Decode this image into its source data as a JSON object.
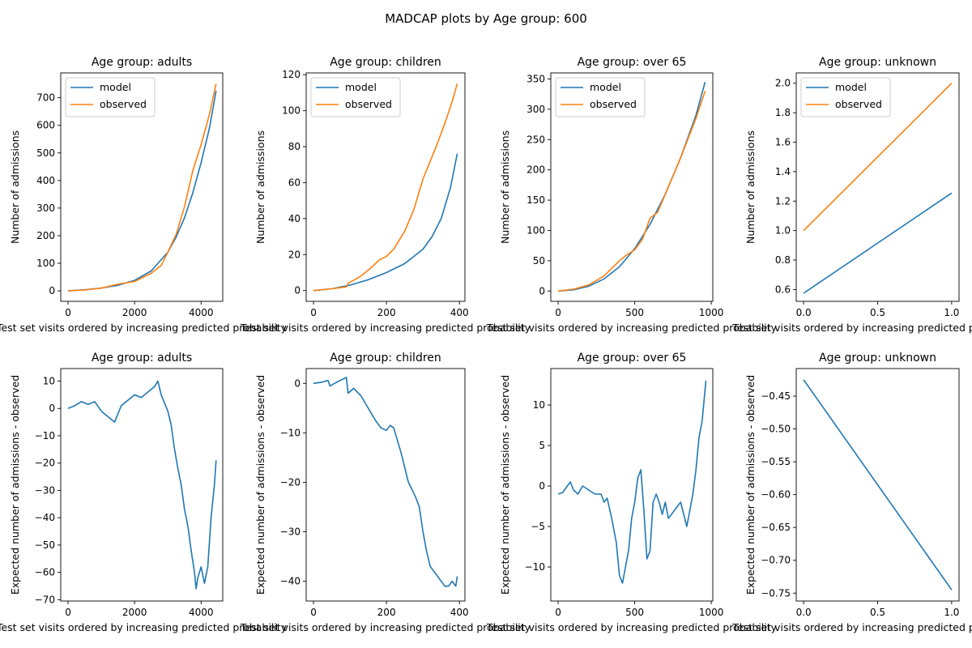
{
  "figure": {
    "suptitle": "MADCAP plots by Age group: 600"
  },
  "colors": {
    "model": "#1f77b4",
    "observed": "#ff7f0e",
    "diff": "#1f77b4"
  },
  "chart_data": [
    {
      "type": "line",
      "title": "Age group: adults",
      "xlabel": "Test set visits ordered by increasing predicted probability",
      "ylabel": "Number of admissions",
      "xlim": [
        -220,
        4650
      ],
      "ylim": [
        -38,
        790
      ],
      "xticks": [
        0,
        2000,
        4000
      ],
      "yticks": [
        0,
        100,
        200,
        300,
        400,
        500,
        600,
        700
      ],
      "legend": "upper-left",
      "series": [
        {
          "name": "model",
          "color": "model",
          "x": [
            0,
            500,
            1000,
            1500,
            2000,
            2500,
            3000,
            3250,
            3500,
            3750,
            4000,
            4250,
            4450
          ],
          "y": [
            0,
            4,
            10,
            20,
            38,
            72,
            140,
            195,
            265,
            355,
            465,
            590,
            725
          ]
        },
        {
          "name": "observed",
          "color": "observed",
          "x": [
            0,
            500,
            1000,
            1500,
            2000,
            2500,
            2800,
            3000,
            3250,
            3500,
            3750,
            4000,
            4250,
            4450
          ],
          "y": [
            0,
            3,
            10,
            24,
            34,
            64,
            92,
            140,
            205,
            305,
            435,
            530,
            640,
            750
          ]
        }
      ]
    },
    {
      "type": "line",
      "title": "Age group: children",
      "xlabel": "Test set visits ordered by increasing predicted probability",
      "ylabel": "Number of admissions",
      "xlim": [
        -20,
        415
      ],
      "ylim": [
        -6,
        121
      ],
      "xticks": [
        0,
        200,
        400
      ],
      "yticks": [
        0,
        20,
        40,
        60,
        80,
        100,
        120
      ],
      "legend": "upper-left",
      "series": [
        {
          "name": "model",
          "color": "model",
          "x": [
            0,
            50,
            100,
            150,
            200,
            250,
            300,
            325,
            350,
            375,
            394
          ],
          "y": [
            0,
            1,
            3,
            6,
            10,
            15,
            23,
            30,
            40,
            57,
            76
          ]
        },
        {
          "name": "observed",
          "color": "observed",
          "x": [
            0,
            50,
            90,
            95,
            130,
            160,
            180,
            200,
            220,
            250,
            275,
            300,
            320,
            340,
            360,
            380,
            394
          ],
          "y": [
            0,
            1,
            2,
            4,
            8,
            13,
            17,
            19,
            23,
            33,
            45,
            62,
            72,
            82,
            93,
            105,
            115
          ]
        }
      ]
    },
    {
      "type": "line",
      "title": "Age group: over 65",
      "xlabel": "Test set visits ordered by increasing predicted probability",
      "ylabel": "Number of admissions",
      "xlim": [
        -48,
        1010
      ],
      "ylim": [
        -17,
        360
      ],
      "xticks": [
        0,
        500,
        1000
      ],
      "yticks": [
        0,
        50,
        100,
        150,
        200,
        250,
        300,
        350
      ],
      "legend": "upper-left",
      "series": [
        {
          "name": "model",
          "color": "model",
          "x": [
            0,
            100,
            200,
            300,
            400,
            500,
            600,
            700,
            800,
            900,
            960
          ],
          "y": [
            0,
            2,
            8,
            20,
            40,
            70,
            110,
            160,
            220,
            290,
            345
          ]
        },
        {
          "name": "observed",
          "color": "observed",
          "x": [
            0,
            100,
            200,
            300,
            400,
            450,
            500,
            550,
            600,
            650,
            700,
            800,
            900,
            960
          ],
          "y": [
            0,
            3,
            10,
            25,
            50,
            60,
            68,
            85,
            120,
            130,
            160,
            220,
            285,
            330
          ]
        }
      ]
    },
    {
      "type": "line",
      "title": "Age group: unknown",
      "xlabel": "Test set visits ordered by increasing predicted probability",
      "ylabel": "Number of admissions",
      "xlim": [
        -0.05,
        1.05
      ],
      "ylim": [
        0.52,
        2.07
      ],
      "xticks": [
        0.0,
        0.5,
        1.0
      ],
      "yticks": [
        0.6,
        0.8,
        1.0,
        1.2,
        1.4,
        1.6,
        1.8,
        2.0
      ],
      "legend": "upper-left",
      "series": [
        {
          "name": "model",
          "color": "model",
          "x": [
            0,
            1
          ],
          "y": [
            0.575,
            1.255
          ]
        },
        {
          "name": "observed",
          "color": "observed",
          "x": [
            0,
            1
          ],
          "y": [
            1.0,
            2.0
          ]
        }
      ]
    },
    {
      "type": "line",
      "title": "Age group: adults",
      "xlabel": "Test set visits ordered by increasing predicted probability",
      "ylabel": "Expected number of admissions - observed",
      "xlim": [
        -220,
        4650
      ],
      "ylim": [
        -70.5,
        14.6
      ],
      "xticks": [
        0,
        2000,
        4000
      ],
      "yticks": [
        10,
        0,
        -10,
        -20,
        -30,
        -40,
        -50,
        -60,
        -70
      ],
      "series": [
        {
          "color": "diff",
          "x": [
            0,
            200,
            400,
            600,
            800,
            1000,
            1200,
            1400,
            1600,
            1800,
            2000,
            2200,
            2400,
            2600,
            2700,
            2800,
            2900,
            3000,
            3100,
            3200,
            3300,
            3400,
            3500,
            3600,
            3700,
            3800,
            3850,
            3900,
            4000,
            4100,
            4200,
            4300,
            4400,
            4450
          ],
          "y": [
            0,
            1,
            2.5,
            1.5,
            2.5,
            -1,
            -3,
            -5,
            1,
            3,
            5,
            4,
            6,
            8,
            10,
            5,
            2,
            -1,
            -6,
            -15,
            -22,
            -28,
            -37,
            -43,
            -52,
            -60,
            -66,
            -62,
            -58,
            -64,
            -58,
            -40,
            -28,
            -19
          ]
        }
      ]
    },
    {
      "type": "line",
      "title": "Age group: children",
      "xlabel": "Test set visits ordered by increasing predicted probability",
      "ylabel": "Expected number of admissions - observed",
      "xlim": [
        -20,
        415
      ],
      "ylim": [
        -44,
        3
      ],
      "xticks": [
        0,
        200,
        400
      ],
      "yticks": [
        0,
        -10,
        -20,
        -30,
        -40
      ],
      "series": [
        {
          "color": "diff",
          "x": [
            0,
            20,
            40,
            45,
            70,
            90,
            95,
            110,
            130,
            150,
            170,
            185,
            200,
            210,
            220,
            240,
            260,
            280,
            290,
            300,
            310,
            320,
            330,
            340,
            350,
            360,
            370,
            380,
            390,
            394
          ],
          "y": [
            0,
            0.2,
            0.6,
            -0.5,
            0.5,
            1.2,
            -2,
            -1,
            -2.5,
            -5,
            -7.5,
            -9,
            -9.5,
            -8.5,
            -9,
            -14,
            -20,
            -23,
            -25,
            -30,
            -34,
            -37,
            -38,
            -39,
            -40,
            -41,
            -41,
            -40,
            -41,
            -39
          ]
        }
      ]
    },
    {
      "type": "line",
      "title": "Age group: over 65",
      "xlabel": "Test set visits ordered by increasing predicted probability",
      "ylabel": "Expected number of admissions - observed",
      "xlim": [
        -48,
        1010
      ],
      "ylim": [
        -14.2,
        14.5
      ],
      "xticks": [
        0,
        500,
        1000
      ],
      "yticks": [
        10,
        5,
        0,
        -5,
        -10
      ],
      "series": [
        {
          "color": "diff",
          "x": [
            0,
            30,
            60,
            80,
            100,
            130,
            160,
            200,
            240,
            280,
            300,
            320,
            350,
            380,
            400,
            420,
            440,
            460,
            480,
            500,
            520,
            540,
            560,
            580,
            600,
            620,
            640,
            660,
            680,
            700,
            720,
            760,
            800,
            840,
            880,
            900,
            920,
            940,
            955,
            965
          ],
          "y": [
            -1,
            -0.8,
            0,
            0.5,
            -0.5,
            -1,
            0,
            -0.5,
            -1,
            -1,
            -2,
            -1.5,
            -4,
            -7,
            -11,
            -12,
            -10,
            -8,
            -4,
            -2,
            1,
            2,
            -3,
            -9,
            -8,
            -2,
            -1,
            -2,
            -3.5,
            -2,
            -4,
            -3,
            -2,
            -5,
            -1,
            2,
            6,
            8,
            11,
            13
          ]
        }
      ]
    },
    {
      "type": "line",
      "title": "Age group: unknown",
      "xlabel": "Test set visits ordered by increasing predicted probability",
      "ylabel": "Expected number of admissions - observed",
      "xlim": [
        -0.05,
        1.05
      ],
      "ylim": [
        -0.762,
        -0.408
      ],
      "xticks": [
        0.0,
        0.5,
        1.0
      ],
      "yticks": [
        -0.45,
        -0.5,
        -0.55,
        -0.6,
        -0.65,
        -0.7,
        -0.75
      ],
      "series": [
        {
          "color": "diff",
          "x": [
            0,
            1
          ],
          "y": [
            -0.425,
            -0.745
          ]
        }
      ]
    }
  ]
}
